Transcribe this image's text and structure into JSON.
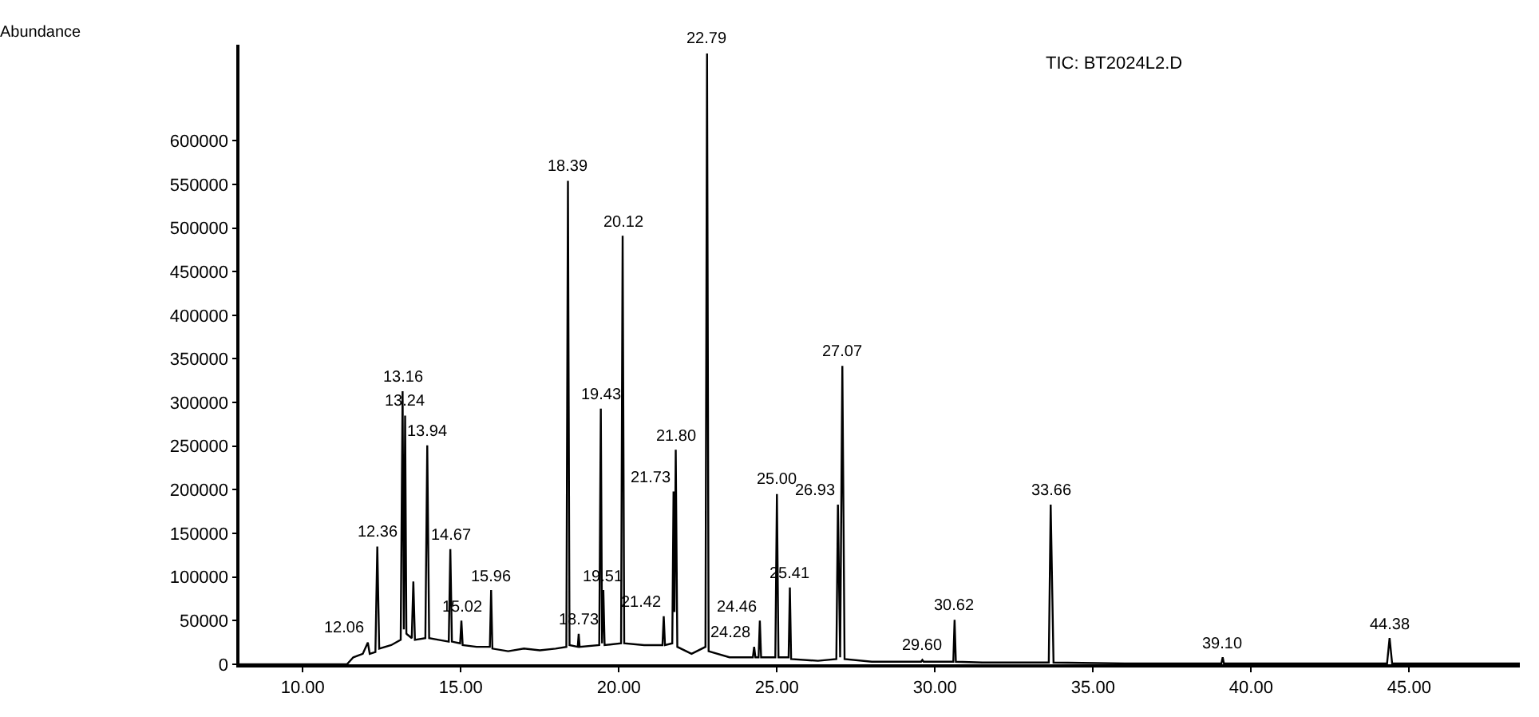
{
  "chart_data": {
    "type": "line",
    "title": "TIC: BT2024L2.D",
    "x": [
      8.0,
      11.4,
      11.6,
      11.9,
      12.06,
      12.12,
      12.3,
      12.36,
      12.42,
      12.8,
      13.1,
      13.16,
      13.2,
      13.24,
      13.28,
      13.45,
      13.5,
      13.55,
      13.88,
      13.94,
      14.0,
      14.3,
      14.62,
      14.67,
      14.72,
      14.98,
      15.02,
      15.06,
      15.5,
      15.92,
      15.96,
      16.0,
      16.5,
      17.0,
      17.5,
      18.0,
      18.34,
      18.39,
      18.44,
      18.7,
      18.73,
      18.76,
      19.38,
      19.43,
      19.47,
      19.51,
      19.55,
      20.07,
      20.12,
      20.17,
      20.8,
      21.38,
      21.42,
      21.46,
      21.69,
      21.73,
      21.76,
      21.8,
      21.85,
      22.3,
      22.74,
      22.79,
      22.84,
      23.5,
      24.24,
      24.28,
      24.32,
      24.42,
      24.46,
      24.5,
      24.95,
      25.0,
      25.05,
      25.37,
      25.41,
      25.45,
      26.3,
      26.88,
      26.93,
      27.0,
      27.07,
      27.14,
      28.0,
      29.56,
      29.6,
      29.64,
      30.3,
      30.58,
      30.62,
      30.66,
      31.5,
      33.6,
      33.66,
      33.75,
      36.0,
      39.06,
      39.1,
      39.14,
      42.0,
      44.3,
      44.38,
      44.46,
      48.5
    ],
    "values": [
      0,
      0,
      8000,
      12000,
      25000,
      12000,
      14000,
      135000,
      18000,
      22000,
      28000,
      313000,
      40000,
      285000,
      35000,
      30000,
      95000,
      28000,
      30000,
      251000,
      30000,
      28000,
      26000,
      132000,
      26000,
      24000,
      50000,
      22000,
      20000,
      20000,
      85000,
      18000,
      15000,
      18000,
      16000,
      18000,
      20000,
      554000,
      22000,
      20000,
      35000,
      20000,
      22000,
      293000,
      24000,
      85000,
      22000,
      24000,
      491000,
      24000,
      22000,
      22000,
      55000,
      22000,
      24000,
      198000,
      60000,
      246000,
      20000,
      12000,
      20000,
      700000,
      15000,
      8000,
      8000,
      20000,
      8000,
      8000,
      50000,
      8000,
      8000,
      195000,
      8000,
      8000,
      88000,
      6000,
      4000,
      6000,
      183000,
      8000,
      342000,
      6000,
      3000,
      3000,
      5000,
      3000,
      3000,
      3000,
      51000,
      3000,
      2000,
      2000,
      183000,
      2000,
      1000,
      1000,
      8000,
      1000,
      1000,
      1000,
      30000,
      1000,
      1000
    ],
    "color": "#000000",
    "marker": "none",
    "line_style": "solid",
    "xlim": [
      8.0,
      48.5
    ],
    "ylim": [
      0,
      710000
    ],
    "xticks": [
      {
        "value": 10,
        "label": "10.00"
      },
      {
        "value": 15,
        "label": "15.00"
      },
      {
        "value": 20,
        "label": "20.00"
      },
      {
        "value": 25,
        "label": "25.00"
      },
      {
        "value": 30,
        "label": "30.00"
      },
      {
        "value": 35,
        "label": "35.00"
      },
      {
        "value": 40,
        "label": "40.00"
      },
      {
        "value": 45,
        "label": "45.00"
      }
    ],
    "yticks": [
      0,
      50000,
      100000,
      150000,
      200000,
      250000,
      300000,
      350000,
      400000,
      450000,
      500000,
      550000,
      600000
    ],
    "annotations": [
      "Abundance",
      {
        "text": "12.06",
        "x": 12.06,
        "y": 25000
      },
      {
        "text": "12.36",
        "x": 12.36,
        "y": 135000
      },
      {
        "text": "13.16",
        "x": 13.16,
        "y": 313000
      },
      {
        "text": "13.24",
        "x": 13.24,
        "y": 285000
      },
      {
        "text": "13.94",
        "x": 13.94,
        "y": 251000
      },
      {
        "text": "14.67",
        "x": 14.67,
        "y": 132000
      },
      {
        "text": "15.02",
        "x": 15.02,
        "y": 50000
      },
      {
        "text": "15.96",
        "x": 15.96,
        "y": 85000
      },
      {
        "text": "18.39",
        "x": 18.39,
        "y": 554000
      },
      {
        "text": "18.73",
        "x": 18.73,
        "y": 35000
      },
      {
        "text": "19.43",
        "x": 19.43,
        "y": 293000
      },
      {
        "text": "19.51",
        "x": 19.51,
        "y": 85000
      },
      {
        "text": "20.12",
        "x": 20.12,
        "y": 491000
      },
      {
        "text": "21.42",
        "x": 21.42,
        "y": 55000
      },
      {
        "text": "21.73",
        "x": 21.73,
        "y": 198000
      },
      {
        "text": "21.80",
        "x": 21.8,
        "y": 246000
      },
      {
        "text": "22.79",
        "x": 22.79,
        "y": 700000
      },
      {
        "text": "24.28",
        "x": 24.28,
        "y": 20000
      },
      {
        "text": "24.46",
        "x": 24.46,
        "y": 50000
      },
      {
        "text": "25.00",
        "x": 25.0,
        "y": 195000
      },
      {
        "text": "25.41",
        "x": 25.41,
        "y": 88000
      },
      {
        "text": "26.93",
        "x": 26.93,
        "y": 183000
      },
      {
        "text": "27.07",
        "x": 27.07,
        "y": 342000
      },
      {
        "text": "29.60",
        "x": 29.6,
        "y": 5000
      },
      {
        "text": "30.62",
        "x": 30.62,
        "y": 51000
      },
      {
        "text": "33.66",
        "x": 33.66,
        "y": 183000
      },
      {
        "text": "39.10",
        "x": 39.1,
        "y": 8000
      },
      {
        "text": "44.38",
        "x": 44.38,
        "y": 30000
      }
    ]
  }
}
